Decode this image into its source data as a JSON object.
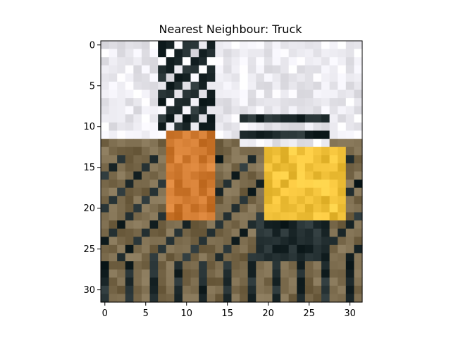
{
  "chart_data": {
    "type": "image",
    "title": "Nearest Neighbour: Truck",
    "xlabel": "",
    "ylabel": "",
    "xlim": [
      -0.5,
      31.5
    ],
    "ylim": [
      31.5,
      -0.5
    ],
    "grid": false,
    "x_ticks": [
      0,
      5,
      10,
      15,
      20,
      25,
      30
    ],
    "y_ticks": [
      0,
      5,
      10,
      15,
      20,
      25,
      30
    ],
    "image_size": [
      32,
      32
    ],
    "image_description": "Low-resolution 32x32 photo: pale sky in the upper half, a dark crane arm rising at top-left center, an orange-brown machine cab in the center, a yellow bulldozer/loader body on the right, dark tracks and brown dirt in the lower half"
  },
  "palette": {
    "sky": "#ecebf1",
    "orange": "#d07a30",
    "yellow": "#f2c23a",
    "dark": "#1e2a2c",
    "brown": "#7a6a4c"
  }
}
